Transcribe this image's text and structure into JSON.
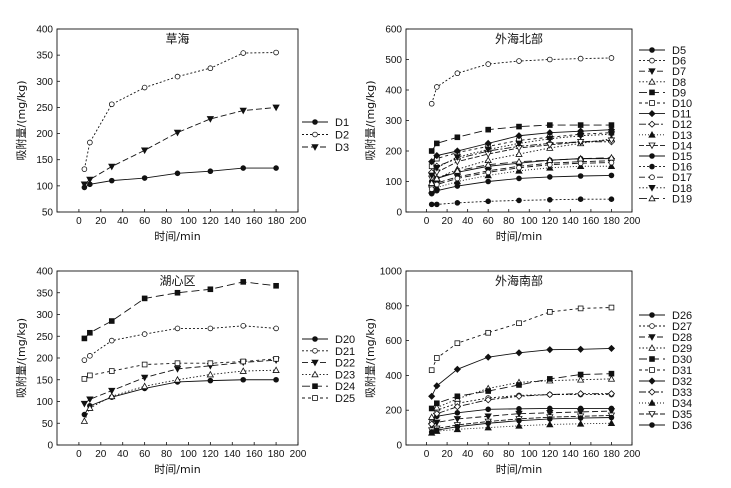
{
  "chart_data": [
    {
      "type": "line",
      "title": "草海",
      "xlabel": "时间/min",
      "ylabel": "吸附量/(mg/kg)",
      "xlim": [
        -20,
        200
      ],
      "ylim": [
        50,
        400
      ],
      "xticks": [
        "0",
        "20",
        "40",
        "60",
        "80",
        "100",
        "120",
        "140",
        "160",
        "180",
        "200"
      ],
      "yticks": [
        "50",
        "100",
        "150",
        "200",
        "250",
        "300",
        "350",
        "400"
      ],
      "legend_position": "right",
      "x": [
        5,
        10,
        30,
        60,
        90,
        120,
        150,
        180
      ],
      "series": [
        {
          "name": "D1",
          "values": [
            97,
            103,
            110,
            115,
            124,
            128,
            134,
            134
          ]
        },
        {
          "name": "D2",
          "values": [
            132,
            183,
            256,
            288,
            309,
            325,
            354,
            355
          ]
        },
        {
          "name": "D3",
          "values": [
            103,
            112,
            137,
            168,
            202,
            228,
            244,
            250
          ]
        }
      ]
    },
    {
      "type": "line",
      "title": "外海北部",
      "xlabel": "时间/min",
      "ylabel": "吸附量/(mg/kg)",
      "xlim": [
        -20,
        200
      ],
      "ylim": [
        0,
        600
      ],
      "xticks": [
        "0",
        "20",
        "40",
        "60",
        "80",
        "100",
        "120",
        "140",
        "160",
        "180",
        "200"
      ],
      "yticks": [
        "0",
        "100",
        "200",
        "300",
        "400",
        "500",
        "600"
      ],
      "legend_position": "right",
      "x": [
        5,
        10,
        30,
        60,
        90,
        120,
        150,
        180
      ],
      "series": [
        {
          "name": "D5",
          "values": [
            100,
            110,
            130,
            150,
            160,
            170,
            175,
            175
          ]
        },
        {
          "name": "D6",
          "values": [
            355,
            410,
            455,
            485,
            495,
            500,
            503,
            505
          ]
        },
        {
          "name": "D7",
          "values": [
            80,
            95,
            115,
            135,
            150,
            160,
            165,
            168
          ]
        },
        {
          "name": "D8",
          "values": [
            90,
            110,
            140,
            170,
            190,
            210,
            225,
            240
          ]
        },
        {
          "name": "D9",
          "values": [
            200,
            225,
            245,
            270,
            280,
            285,
            285,
            285
          ]
        },
        {
          "name": "D10",
          "values": [
            150,
            175,
            195,
            215,
            235,
            245,
            255,
            260
          ]
        },
        {
          "name": "D11",
          "values": [
            165,
            185,
            200,
            225,
            250,
            260,
            265,
            270
          ]
        },
        {
          "name": "D12",
          "values": [
            130,
            150,
            175,
            200,
            215,
            225,
            230,
            230
          ]
        },
        {
          "name": "D13",
          "values": [
            70,
            80,
            100,
            120,
            135,
            145,
            150,
            150
          ]
        },
        {
          "name": "D14",
          "values": [
            110,
            130,
            165,
            190,
            210,
            220,
            230,
            235
          ]
        },
        {
          "name": "D15",
          "values": [
            60,
            70,
            85,
            100,
            110,
            115,
            118,
            120
          ]
        },
        {
          "name": "D16",
          "values": [
            25,
            25,
            30,
            35,
            38,
            40,
            42,
            42
          ]
        },
        {
          "name": "D17",
          "values": [
            75,
            90,
            110,
            130,
            145,
            155,
            160,
            162
          ]
        },
        {
          "name": "D18",
          "values": [
            120,
            145,
            180,
            205,
            225,
            240,
            250,
            255
          ]
        },
        {
          "name": "D19",
          "values": [
            95,
            110,
            135,
            155,
            165,
            170,
            175,
            178
          ]
        }
      ]
    },
    {
      "type": "line",
      "title": "湖心区",
      "xlabel": "时间/min",
      "ylabel": "吸附量/(mg/kg)",
      "xlim": [
        -20,
        200
      ],
      "ylim": [
        0,
        400
      ],
      "xticks": [
        "0",
        "20",
        "40",
        "60",
        "80",
        "100",
        "120",
        "140",
        "160",
        "180",
        "200"
      ],
      "yticks": [
        "0",
        "50",
        "100",
        "150",
        "200",
        "250",
        "300",
        "350",
        "400"
      ],
      "legend_position": "right",
      "x": [
        5,
        10,
        30,
        60,
        90,
        120,
        150,
        180
      ],
      "series": [
        {
          "name": "D20",
          "values": [
            70,
            90,
            110,
            130,
            145,
            148,
            150,
            150
          ]
        },
        {
          "name": "D21",
          "values": [
            195,
            205,
            240,
            255,
            268,
            268,
            274,
            268
          ]
        },
        {
          "name": "D22",
          "values": [
            95,
            105,
            125,
            155,
            175,
            182,
            190,
            195
          ]
        },
        {
          "name": "D23",
          "values": [
            55,
            85,
            112,
            135,
            150,
            162,
            170,
            172
          ]
        },
        {
          "name": "D24",
          "values": [
            245,
            258,
            285,
            337,
            350,
            358,
            375,
            366
          ]
        },
        {
          "name": "D25",
          "values": [
            152,
            160,
            170,
            185,
            188,
            188,
            192,
            198
          ]
        }
      ]
    },
    {
      "type": "line",
      "title": "外海南部",
      "xlabel": "时间/min",
      "ylabel": "吸附量/(mg/kg)",
      "xlim": [
        -20,
        200
      ],
      "ylim": [
        0,
        1000
      ],
      "xticks": [
        "0",
        "20",
        "40",
        "60",
        "80",
        "100",
        "120",
        "140",
        "160",
        "180",
        "200"
      ],
      "yticks": [
        "0",
        "200",
        "400",
        "600",
        "800",
        "1000"
      ],
      "legend_position": "right",
      "x": [
        5,
        10,
        30,
        60,
        90,
        120,
        150,
        180
      ],
      "series": [
        {
          "name": "D26",
          "values": [
            150,
            165,
            185,
            205,
            208,
            210,
            210,
            210
          ]
        },
        {
          "name": "D27",
          "values": [
            130,
            200,
            240,
            270,
            285,
            290,
            290,
            290
          ]
        },
        {
          "name": "D28",
          "values": [
            110,
            130,
            150,
            165,
            180,
            185,
            190,
            195
          ]
        },
        {
          "name": "D29",
          "values": [
            160,
            215,
            265,
            325,
            360,
            370,
            375,
            380
          ]
        },
        {
          "name": "D30",
          "values": [
            210,
            240,
            280,
            310,
            345,
            380,
            405,
            410
          ]
        },
        {
          "name": "D31",
          "values": [
            430,
            500,
            585,
            645,
            700,
            765,
            785,
            790
          ]
        },
        {
          "name": "D32",
          "values": [
            280,
            340,
            435,
            505,
            530,
            548,
            550,
            555
          ]
        },
        {
          "name": "D33",
          "values": [
            120,
            180,
            220,
            260,
            280,
            290,
            295,
            295
          ]
        },
        {
          "name": "D34",
          "values": [
            70,
            80,
            90,
            100,
            110,
            118,
            122,
            125
          ]
        },
        {
          "name": "D35",
          "values": [
            85,
            95,
            115,
            135,
            150,
            160,
            165,
            170
          ]
        },
        {
          "name": "D36",
          "values": [
            75,
            85,
            105,
            125,
            140,
            150,
            155,
            158
          ]
        }
      ]
    }
  ]
}
